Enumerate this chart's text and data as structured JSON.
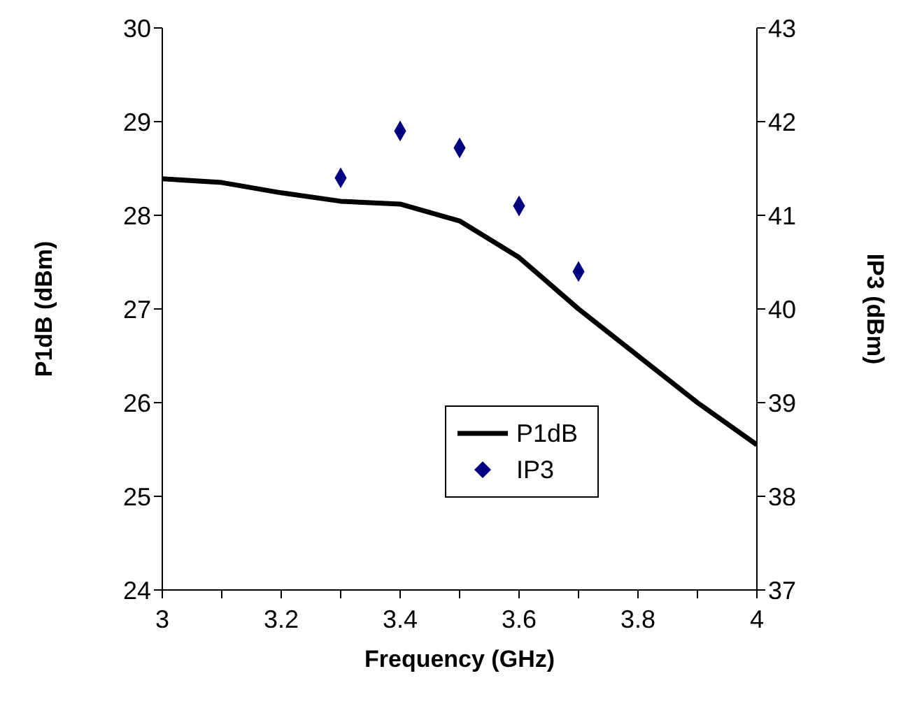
{
  "chart_data": {
    "type": "line",
    "xlabel": "Frequency (GHz)",
    "ylabel": "P1dB (dBm)",
    "y2label": "IP3 (dBm)",
    "xlim": [
      3,
      4
    ],
    "xticks": [
      3,
      {
        "value": 3.1,
        "label": null
      },
      3.2,
      {
        "value": 3.3,
        "label": null
      },
      3.4,
      {
        "value": 3.5,
        "label": null
      },
      3.6,
      {
        "value": 3.7,
        "label": null
      },
      3.8,
      {
        "value": 3.9,
        "label": null
      },
      4
    ],
    "ylim": [
      24,
      30
    ],
    "yticks": [
      24,
      25,
      26,
      27,
      28,
      29,
      30
    ],
    "y2lim": [
      37,
      43
    ],
    "y2ticks": [
      37,
      38,
      39,
      40,
      41,
      42,
      43
    ],
    "grid": false,
    "legend": "bottom right",
    "series": [
      {
        "name": "P1dB",
        "color": "#000000",
        "line_style": "solid",
        "marker": "none",
        "x": [
          3,
          3.1,
          3.2,
          3.3,
          3.4,
          3.5,
          3.6,
          3.7,
          3.8,
          3.9,
          4
        ],
        "values": [
          28.39,
          28.35,
          28.24,
          28.15,
          28.12,
          27.94,
          27.55,
          27.0,
          26.5,
          26.0,
          25.55
        ]
      },
      {
        "name": "IP3",
        "type": "scatter",
        "axis": "y2",
        "color": "#000080",
        "marker": "diamond",
        "x": [
          3.3,
          3.4,
          3.5,
          3.6,
          3.7
        ],
        "values": [
          41.4,
          41.9,
          41.72,
          41.1,
          40.4
        ]
      }
    ]
  }
}
